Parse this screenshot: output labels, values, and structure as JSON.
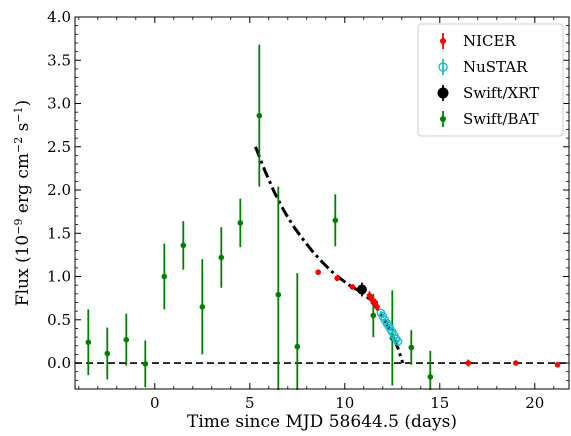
{
  "chart_data": {
    "type": "scatter",
    "xlabel": "Time since MJD 58644.5 (days)",
    "ylabel_parts": [
      "Flux (10",
      "−9",
      " erg cm",
      "−2",
      " s",
      "−1",
      ")"
    ],
    "xlim": [
      -4.2,
      21.8
    ],
    "ylim": [
      -0.3,
      4.0
    ],
    "x_ticks": [
      {
        "value": 0,
        "label": "0"
      },
      {
        "value": 5,
        "label": "5"
      },
      {
        "value": 10,
        "label": "10"
      },
      {
        "value": 15,
        "label": "15"
      },
      {
        "value": 20,
        "label": "20"
      }
    ],
    "y_ticks": [
      {
        "value": 0.0,
        "label": "0.0"
      },
      {
        "value": 0.5,
        "label": "0.5"
      },
      {
        "value": 1.0,
        "label": "1.0"
      },
      {
        "value": 1.5,
        "label": "1.5"
      },
      {
        "value": 2.0,
        "label": "2.0"
      },
      {
        "value": 2.5,
        "label": "2.5"
      },
      {
        "value": 3.0,
        "label": "3.0"
      },
      {
        "value": 3.5,
        "label": "3.5"
      },
      {
        "value": 4.0,
        "label": "4.0"
      }
    ],
    "legend_position": "top-right",
    "zero_line": {
      "y": 0,
      "style": "dashed",
      "color": "#000000"
    },
    "model_curve": {
      "style": "dash-dot",
      "color": "#000000",
      "points": [
        [
          5.3,
          2.5
        ],
        [
          5.8,
          2.22
        ],
        [
          6.3,
          1.97
        ],
        [
          6.8,
          1.76
        ],
        [
          7.3,
          1.58
        ],
        [
          7.8,
          1.43
        ],
        [
          8.3,
          1.29
        ],
        [
          8.8,
          1.17
        ],
        [
          9.3,
          1.06
        ],
        [
          9.8,
          0.97
        ],
        [
          10.3,
          0.89
        ],
        [
          10.8,
          0.83
        ],
        [
          11.3,
          0.74
        ],
        [
          11.8,
          0.6
        ],
        [
          12.3,
          0.42
        ],
        [
          12.8,
          0.17
        ],
        [
          13.05,
          0.0
        ]
      ]
    },
    "series": [
      {
        "name": "NICER",
        "color": "#ff0000",
        "marker": "filled-circle",
        "points": [
          {
            "x": 8.6,
            "y": 1.05,
            "err": 0.03
          },
          {
            "x": 9.6,
            "y": 0.98,
            "err": 0.03
          },
          {
            "x": 10.4,
            "y": 0.88,
            "err": 0.03
          },
          {
            "x": 11.0,
            "y": 0.85,
            "err": 0.03
          },
          {
            "x": 11.3,
            "y": 0.78,
            "err": 0.05
          },
          {
            "x": 11.4,
            "y": 0.74,
            "err": 0.05
          },
          {
            "x": 11.5,
            "y": 0.72,
            "err": 0.05
          },
          {
            "x": 11.6,
            "y": 0.7,
            "err": 0.04
          },
          {
            "x": 11.7,
            "y": 0.65,
            "err": 0.04
          },
          {
            "x": 16.5,
            "y": 0.0,
            "err": 0.04
          },
          {
            "x": 19.0,
            "y": 0.0,
            "err": 0.03
          },
          {
            "x": 21.2,
            "y": -0.02,
            "err": 0.03
          }
        ]
      },
      {
        "name": "NuSTAR",
        "color": "#17becf",
        "marker": "open-circle",
        "points": [
          {
            "x": 11.9,
            "y": 0.58,
            "err": 0.02
          },
          {
            "x": 12.0,
            "y": 0.54,
            "err": 0.02
          },
          {
            "x": 12.1,
            "y": 0.5,
            "err": 0.02
          },
          {
            "x": 12.2,
            "y": 0.46,
            "err": 0.02
          },
          {
            "x": 12.3,
            "y": 0.43,
            "err": 0.02
          },
          {
            "x": 12.4,
            "y": 0.39,
            "err": 0.02
          },
          {
            "x": 12.5,
            "y": 0.36,
            "err": 0.02
          },
          {
            "x": 12.6,
            "y": 0.32,
            "err": 0.02
          },
          {
            "x": 12.7,
            "y": 0.28,
            "err": 0.02
          },
          {
            "x": 12.8,
            "y": 0.25,
            "err": 0.02
          }
        ]
      },
      {
        "name": "Swift/XRT",
        "color": "#000000",
        "marker": "filled-circle-large",
        "points": [
          {
            "x": 10.9,
            "y": 0.85,
            "err": 0.08
          }
        ]
      },
      {
        "name": "Swift/BAT",
        "color": "#008000",
        "marker": "filled-circle",
        "points": [
          {
            "x": -3.5,
            "y": 0.24,
            "err": 0.38
          },
          {
            "x": -2.5,
            "y": 0.11,
            "err": 0.3
          },
          {
            "x": -1.5,
            "y": 0.27,
            "err": 0.3
          },
          {
            "x": -0.5,
            "y": -0.01,
            "err": 0.27
          },
          {
            "x": 0.5,
            "y": 1.0,
            "err": 0.38
          },
          {
            "x": 1.5,
            "y": 1.36,
            "err": 0.28
          },
          {
            "x": 2.5,
            "y": 0.65,
            "err": 0.55
          },
          {
            "x": 3.5,
            "y": 1.22,
            "err": 0.35
          },
          {
            "x": 4.5,
            "y": 1.62,
            "err": 0.28
          },
          {
            "x": 5.5,
            "y": 2.86,
            "err": 0.82
          },
          {
            "x": 6.5,
            "y": 0.79,
            "err": 1.25
          },
          {
            "x": 7.5,
            "y": 0.19,
            "err": 0.85
          },
          {
            "x": 9.5,
            "y": 1.65,
            "err": 0.3
          },
          {
            "x": 11.5,
            "y": 0.55,
            "err": 0.25
          },
          {
            "x": 12.5,
            "y": 0.29,
            "err": 0.55
          },
          {
            "x": 13.5,
            "y": 0.18,
            "err": 0.2
          },
          {
            "x": 14.5,
            "y": -0.16,
            "err": 0.3
          }
        ]
      }
    ]
  }
}
